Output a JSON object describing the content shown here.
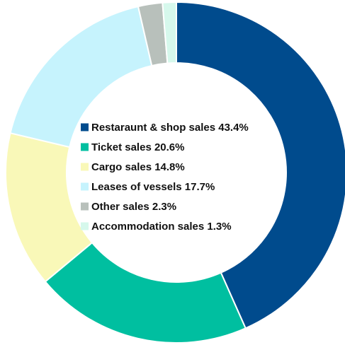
{
  "chart_data": {
    "type": "pie",
    "variant": "donut",
    "slices": [
      {
        "label": "Restaraunt & shop sales 43.4%",
        "value": 43.4,
        "color": "#004b8d"
      },
      {
        "label": "Ticket sales 20.6%",
        "value": 20.6,
        "color": "#00bfa0"
      },
      {
        "label": "Cargo sales 14.8%",
        "value": 14.8,
        "color": "#f9f8b8"
      },
      {
        "label": "Leases of vessels 17.7%",
        "value": 17.7,
        "color": "#c6f3fd"
      },
      {
        "label": "Other sales 2.3%",
        "value": 2.3,
        "color": "#b8c0bb"
      },
      {
        "label": "Accommodation sales 1.3%",
        "value": 1.3,
        "color": "#d6f8ec"
      }
    ],
    "legend_position": "center"
  }
}
